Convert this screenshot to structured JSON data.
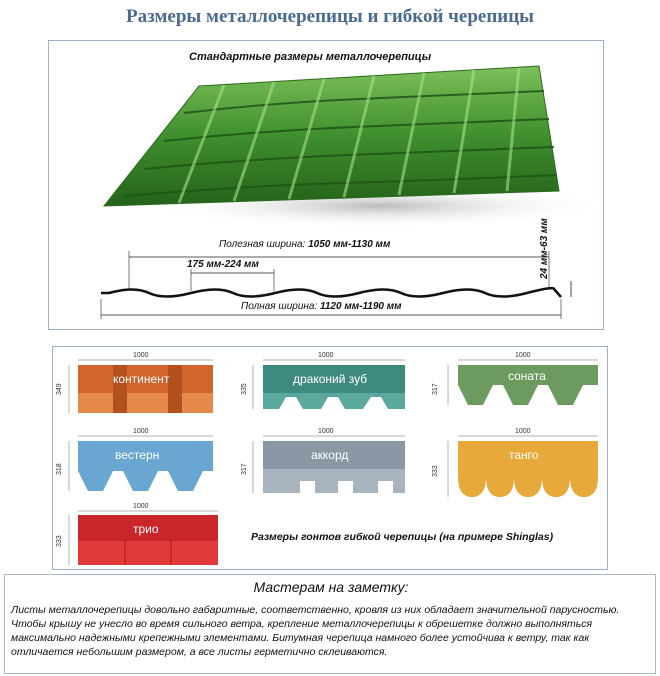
{
  "title": "Размеры металлочерепицы и гибкой черепицы",
  "metal_tile": {
    "caption": "Стандартные размеры металлочерепицы",
    "useful_width_label": "Полезная ширина:",
    "useful_width_value": "1050 мм-1130 мм",
    "wave_step": "175 мм-224 мм",
    "full_width_label": "Полная ширина:",
    "full_width_value": "1120 мм-1190 мм",
    "height": "24 мм-63 мм",
    "color": "#3f8f2e"
  },
  "shingles": {
    "caption": "Размеры гонтов гибкой черепицы (на примере Shinglas)",
    "items": [
      {
        "name": "континент",
        "width": "1000",
        "height": "349",
        "color": "#d2642c"
      },
      {
        "name": "драконий зуб",
        "width": "1000",
        "height": "335",
        "color": "#3f8a80"
      },
      {
        "name": "соната",
        "width": "1000",
        "height": "317",
        "color": "#6d9a5f"
      },
      {
        "name": "вестерн",
        "width": "1000",
        "height": "318",
        "color": "#6aa6d2"
      },
      {
        "name": "аккорд",
        "width": "1000",
        "height": "317",
        "color": "#8a98a6"
      },
      {
        "name": "танго",
        "width": "1000",
        "height": "333",
        "color": "#e6a93a"
      },
      {
        "name": "трио",
        "width": "1000",
        "height": "333",
        "color": "#c9262c"
      }
    ]
  },
  "note": {
    "title": "Мастерам на заметку:",
    "text": "Листы металлочерепицы довольно габаритные, соответственно, кровля из них обладает значительной парусностью. Чтобы крышу не унесло во время сильного ветра, крепление металлочерепицы к обрешетке должно выполняться максимально надежными крепежными элементами. Битумная черепица намного более устойчива к ветру, так как отличается небольшим размером, а все листы герметично склеиваются."
  }
}
